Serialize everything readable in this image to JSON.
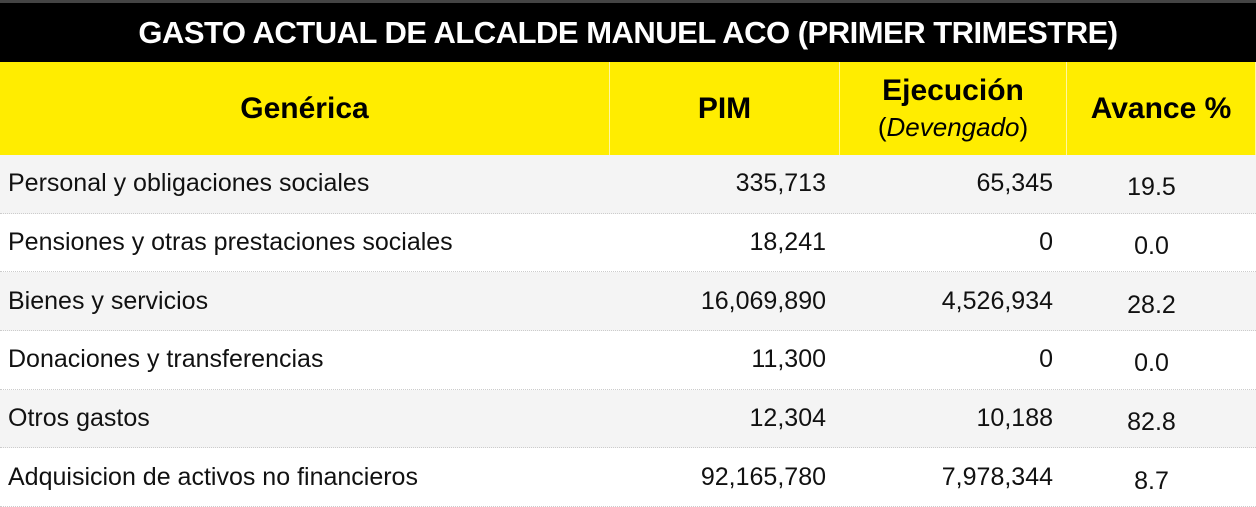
{
  "title": "GASTO ACTUAL DE ALCALDE MANUEL ACO (PRIMER TRIMESTRE)",
  "headers": {
    "generica": "Genérica",
    "pim": "PIM",
    "ejecucion": "Ejecución",
    "ejecucion_sub_open": "(",
    "ejecucion_sub": "Devengado",
    "ejecucion_sub_close": ")",
    "avance": "Avance %"
  },
  "rows": [
    {
      "generica": "Personal y obligaciones sociales",
      "pim": "335,713",
      "ejecucion": "65,345",
      "avance": "19.5"
    },
    {
      "generica": "Pensiones y otras prestaciones sociales",
      "pim": "18,241",
      "ejecucion": "0",
      "avance": "0.0"
    },
    {
      "generica": "Bienes y servicios",
      "pim": "16,069,890",
      "ejecucion": "4,526,934",
      "avance": "28.2"
    },
    {
      "generica": "Donaciones y transferencias",
      "pim": "11,300",
      "ejecucion": "0",
      "avance": "0.0"
    },
    {
      "generica": "Otros gastos",
      "pim": "12,304",
      "ejecucion": "10,188",
      "avance": "82.8"
    },
    {
      "generica": "Adquisicion de activos no financieros",
      "pim": "92,165,780",
      "ejecucion": "7,978,344",
      "avance": "8.7"
    }
  ]
}
